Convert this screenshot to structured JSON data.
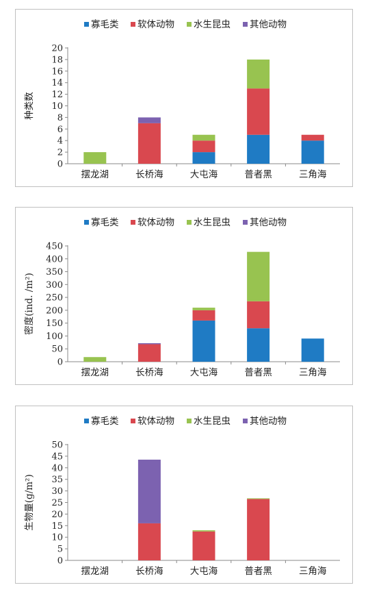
{
  "legend": [
    {
      "name": "寡毛类",
      "color": "#1f7bc4"
    },
    {
      "name": "软体动物",
      "color": "#d9484f"
    },
    {
      "name": "水生昆虫",
      "color": "#98c350"
    },
    {
      "name": "其他动物",
      "color": "#7c62b0"
    }
  ],
  "chart_data": [
    {
      "type": "bar",
      "stacked": true,
      "categories": [
        "摆龙湖",
        "长桥海",
        "大屯海",
        "普者黑",
        "三角海"
      ],
      "ylabel": "种类数",
      "ylim": [
        0,
        20
      ],
      "yticks": [
        "0",
        "2",
        "4",
        "6",
        "8",
        "10",
        "12",
        "14",
        "16",
        "18",
        "20"
      ],
      "legend_position": "top",
      "series": [
        {
          "name": "寡毛类",
          "values": [
            0,
            0,
            2,
            5,
            4
          ]
        },
        {
          "name": "软体动物",
          "values": [
            0,
            7,
            2,
            8,
            1
          ]
        },
        {
          "name": "水生昆虫",
          "values": [
            2,
            0,
            1,
            5,
            0
          ]
        },
        {
          "name": "其他动物",
          "values": [
            0,
            1,
            0,
            0,
            0
          ]
        }
      ]
    },
    {
      "type": "bar",
      "stacked": true,
      "categories": [
        "摆龙湖",
        "长桥海",
        "大屯海",
        "普者黑",
        "三角海"
      ],
      "ylabel": "密度(ind. /m²)",
      "ylim": [
        0,
        450
      ],
      "yticks": [
        "0",
        "50",
        "100",
        "150",
        "200",
        "250",
        "300",
        "350",
        "400",
        "450"
      ],
      "legend_position": "top",
      "series": [
        {
          "name": "寡毛类",
          "values": [
            0,
            0,
            160,
            130,
            90
          ]
        },
        {
          "name": "软体动物",
          "values": [
            0,
            68,
            40,
            105,
            0
          ]
        },
        {
          "name": "水生昆虫",
          "values": [
            18,
            0,
            10,
            192,
            0
          ]
        },
        {
          "name": "其他动物",
          "values": [
            0,
            4,
            0,
            0,
            0
          ]
        }
      ]
    },
    {
      "type": "bar",
      "stacked": true,
      "categories": [
        "摆龙湖",
        "长桥海",
        "大屯海",
        "普者黑",
        "三角海"
      ],
      "ylabel": "生物量(g/m²)",
      "ylim": [
        0,
        50
      ],
      "yticks": [
        "0",
        "5",
        "10",
        "15",
        "20",
        "25",
        "30",
        "35",
        "40",
        "45",
        "50"
      ],
      "legend_position": "top",
      "series": [
        {
          "name": "寡毛类",
          "values": [
            0,
            0,
            0,
            0,
            0
          ]
        },
        {
          "name": "软体动物",
          "values": [
            0,
            16,
            12.5,
            26.5,
            0
          ]
        },
        {
          "name": "水生昆虫",
          "values": [
            0,
            0,
            0.5,
            0.3,
            0
          ]
        },
        {
          "name": "其他动物",
          "values": [
            0,
            27.5,
            0,
            0,
            0
          ]
        }
      ]
    }
  ]
}
